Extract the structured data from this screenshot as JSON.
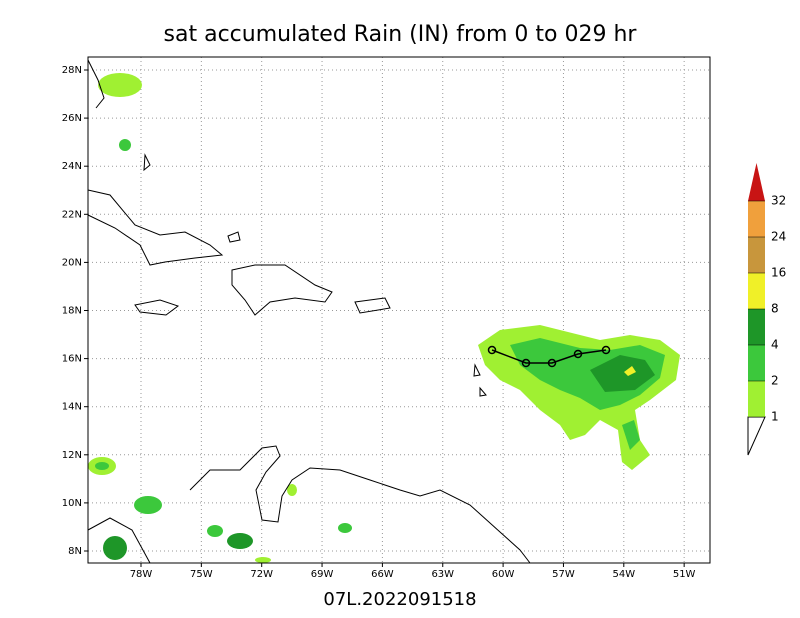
{
  "title": "sat accumulated Rain (IN) from 0 to 029 hr",
  "footer": "07L.2022091518",
  "map": {
    "lon_ticks": [
      "78W",
      "75W",
      "72W",
      "69W",
      "66W",
      "63W",
      "60W",
      "57W",
      "54W",
      "51W"
    ],
    "lat_ticks": [
      "28N",
      "26N",
      "24N",
      "22N",
      "20N",
      "18N",
      "16N",
      "14N",
      "12N",
      "10N",
      "8N"
    ],
    "grid": true
  },
  "legend": {
    "levels": [
      1,
      2,
      4,
      8,
      16,
      24,
      32
    ],
    "colors": [
      "#a0f032",
      "#3cc83c",
      "#1e9628",
      "#f0f028",
      "#c8963c",
      "#f0a03c",
      "#c81414"
    ]
  }
}
